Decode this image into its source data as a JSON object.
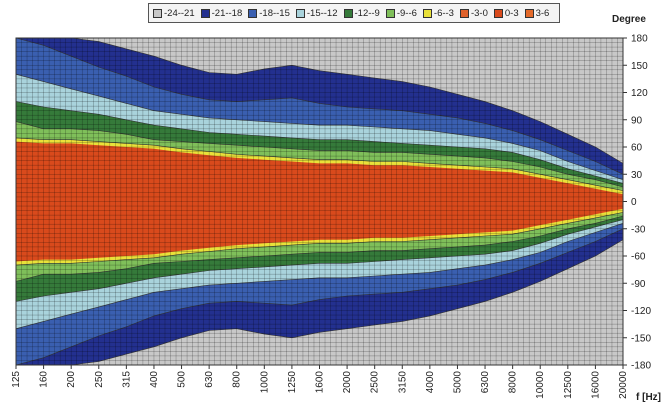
{
  "chart_data": {
    "type": "heatmap",
    "title": "",
    "xlabel": "f [Hz]",
    "ylabel": "Degree",
    "x_scale": "log",
    "x_categories": [
      "125",
      "160",
      "200",
      "250",
      "315",
      "400",
      "500",
      "630",
      "800",
      "1000",
      "1250",
      "1600",
      "2000",
      "2500",
      "3150",
      "4000",
      "5000",
      "6300",
      "8000",
      "10000",
      "12500",
      "16000",
      "20000"
    ],
    "ylim": [
      -180,
      180
    ],
    "y_ticks": [
      180,
      150,
      120,
      90,
      60,
      30,
      0,
      -30,
      -60,
      -90,
      -120,
      -150,
      -180
    ],
    "legend_position": "top",
    "grid": true,
    "levels": [
      {
        "label": "-24--21",
        "min": -24,
        "max": -21,
        "color": "#c8c8c8"
      },
      {
        "label": "-21--18",
        "min": -21,
        "max": -18,
        "color": "#23308f"
      },
      {
        "label": "-18--15",
        "min": -18,
        "max": -15,
        "color": "#3a5fb0"
      },
      {
        "label": "-15--12",
        "min": -15,
        "max": -12,
        "color": "#a9d3dc"
      },
      {
        "label": "-12--9",
        "min": -12,
        "max": -9,
        "color": "#357a3a"
      },
      {
        "label": "-9--6",
        "min": -9,
        "max": -6,
        "color": "#7fbf5a"
      },
      {
        "label": "-6--3",
        "min": -6,
        "max": -3,
        "color": "#e9e13a"
      },
      {
        "label": "-3-0",
        "min": -3,
        "max": 0,
        "color": "#e0622c"
      },
      {
        "label": "0-3",
        "min": 0,
        "max": 3,
        "color": "#d94a1c"
      },
      {
        "label": "3-6",
        "min": 3,
        "max": 6,
        "color": "#e46a2a"
      }
    ],
    "contour_beamwidth_deg": {
      "x": [
        "125",
        "160",
        "200",
        "250",
        "315",
        "400",
        "500",
        "630",
        "800",
        "1000",
        "1250",
        "1600",
        "2000",
        "2500",
        "3150",
        "4000",
        "5000",
        "6300",
        "8000",
        "10000",
        "12500",
        "16000",
        "20000"
      ],
      "minus3dB": [
        70,
        68,
        68,
        66,
        64,
        62,
        58,
        55,
        52,
        50,
        48,
        46,
        46,
        44,
        44,
        42,
        40,
        38,
        36,
        30,
        24,
        18,
        12
      ],
      "minus6dB": [
        88,
        80,
        80,
        78,
        74,
        68,
        66,
        64,
        62,
        60,
        58,
        56,
        56,
        54,
        54,
        52,
        50,
        48,
        44,
        38,
        30,
        24,
        16
      ],
      "minus9dB": [
        110,
        104,
        100,
        96,
        90,
        84,
        80,
        76,
        74,
        72,
        70,
        68,
        68,
        66,
        64,
        62,
        60,
        58,
        54,
        46,
        36,
        28,
        20
      ],
      "minus12dB": [
        140,
        132,
        124,
        116,
        108,
        100,
        96,
        92,
        90,
        88,
        86,
        84,
        84,
        82,
        80,
        78,
        74,
        70,
        64,
        56,
        44,
        34,
        24
      ],
      "minus15dB": [
        180,
        172,
        160,
        148,
        138,
        126,
        118,
        112,
        110,
        112,
        114,
        108,
        104,
        102,
        100,
        96,
        92,
        86,
        78,
        68,
        56,
        44,
        30
      ],
      "minus18dB": [
        180,
        180,
        180,
        176,
        168,
        160,
        150,
        142,
        140,
        146,
        150,
        144,
        140,
        136,
        132,
        126,
        118,
        110,
        100,
        88,
        74,
        60,
        42
      ]
    }
  }
}
